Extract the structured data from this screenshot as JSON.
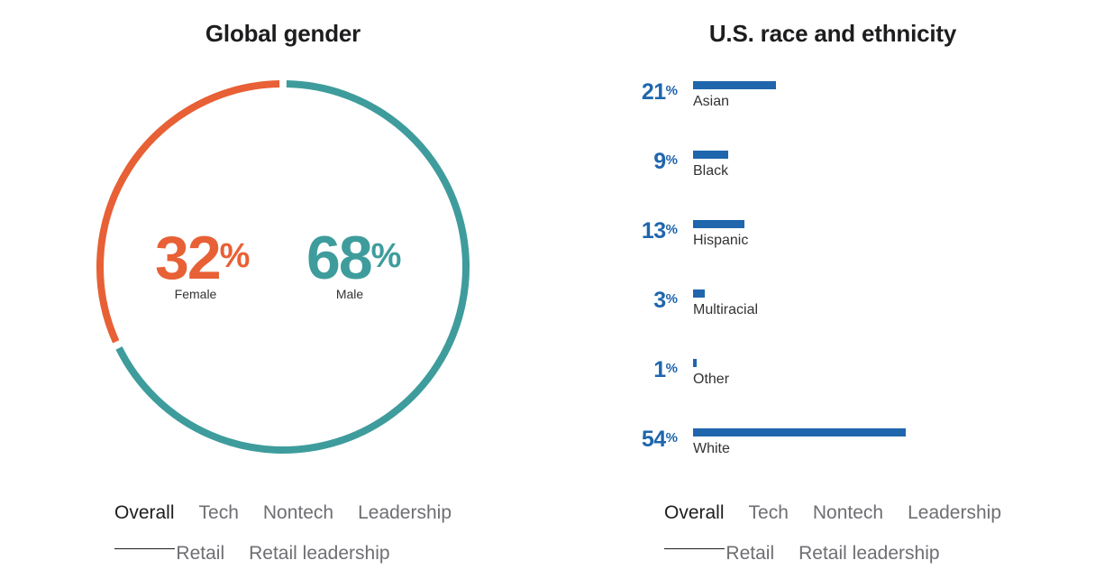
{
  "colors": {
    "female": "#e86035",
    "male": "#3f9c9c",
    "race_bar": "#1f66ad",
    "title": "#1d1d1f",
    "tab_inactive": "#6e6e73"
  },
  "gender": {
    "title": "Global gender",
    "female": {
      "value": "32",
      "unit": "%",
      "label": "Female"
    },
    "male": {
      "value": "68",
      "unit": "%",
      "label": "Male"
    },
    "tabs": [
      "Overall",
      "Tech",
      "Nontech",
      "Leadership",
      "Retail",
      "Retail leadership"
    ],
    "active_tab": "Overall"
  },
  "race": {
    "title": "U.S. race and ethnicity",
    "rows": [
      {
        "value": "21",
        "unit": "%",
        "label": "Asian"
      },
      {
        "value": "9",
        "unit": "%",
        "label": "Black"
      },
      {
        "value": "13",
        "unit": "%",
        "label": "Hispanic"
      },
      {
        "value": "3",
        "unit": "%",
        "label": "Multiracial"
      },
      {
        "value": "1",
        "unit": "%",
        "label": "Other"
      },
      {
        "value": "54",
        "unit": "%",
        "label": "White"
      }
    ],
    "tabs": [
      "Overall",
      "Tech",
      "Nontech",
      "Leadership",
      "Retail",
      "Retail leadership"
    ],
    "active_tab": "Overall"
  },
  "chart_data": [
    {
      "type": "pie",
      "title": "Global gender",
      "categories": [
        "Female",
        "Male"
      ],
      "values": [
        32,
        68
      ],
      "unit": "%",
      "style": "donut"
    },
    {
      "type": "bar",
      "orientation": "horizontal",
      "title": "U.S. race and ethnicity",
      "categories": [
        "Asian",
        "Black",
        "Hispanic",
        "Multiracial",
        "Other",
        "White"
      ],
      "values": [
        21,
        9,
        13,
        3,
        1,
        54
      ],
      "unit": "%",
      "xlim": [
        0,
        54
      ]
    }
  ]
}
